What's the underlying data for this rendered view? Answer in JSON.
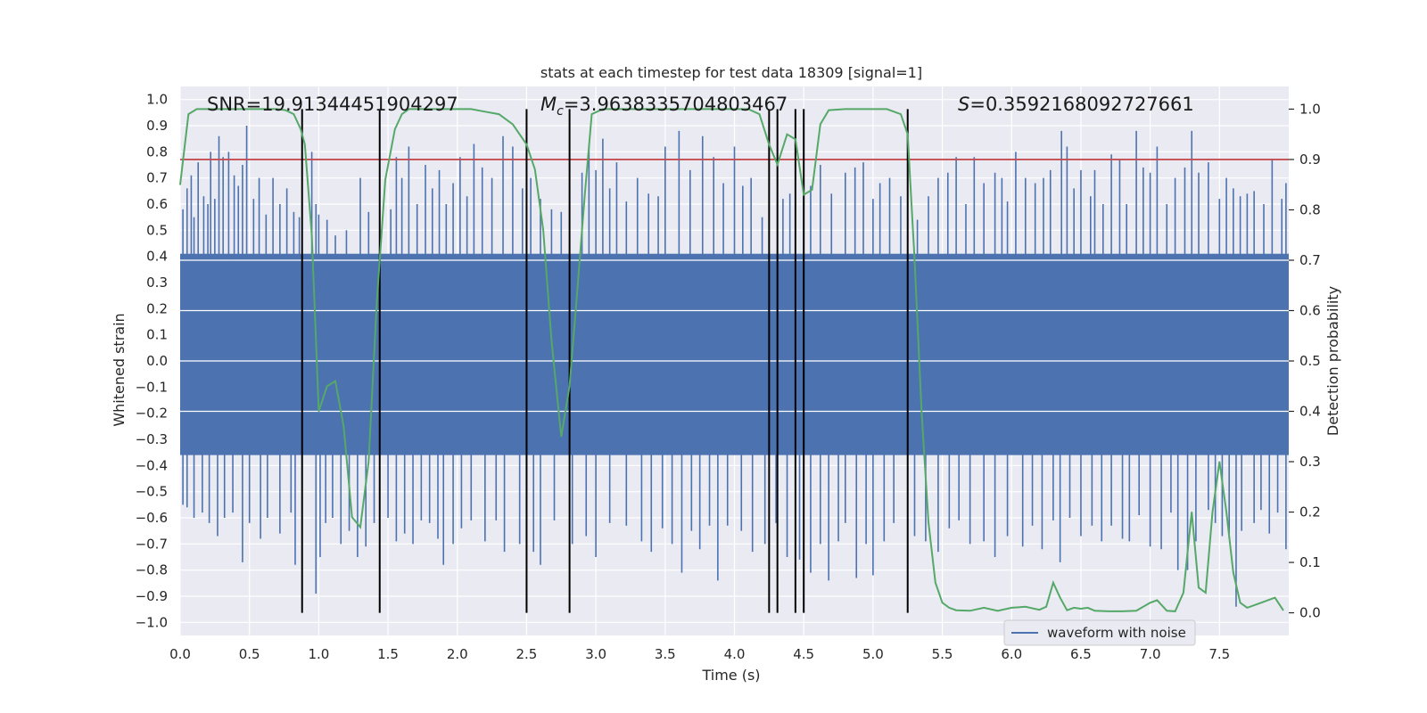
{
  "chart_data": {
    "type": "line",
    "title": "stats at each timestep for test data 18309 [signal=1]",
    "xlabel": "Time (s)",
    "ylabel": "Whitened strain",
    "ylabel_right": "Detection probability",
    "xlim": [
      0.0,
      8.0
    ],
    "ylim": [
      -1.05,
      1.05
    ],
    "ylim_right": [
      -0.045,
      1.045
    ],
    "x_ticks": [
      0.0,
      0.5,
      1.0,
      1.5,
      2.0,
      2.5,
      3.0,
      3.5,
      4.0,
      4.5,
      5.0,
      5.5,
      6.0,
      6.5,
      7.0,
      7.5
    ],
    "x_tick_labels": [
      "0.0",
      "0.5",
      "1.0",
      "1.5",
      "2.0",
      "2.5",
      "3.0",
      "3.5",
      "4.0",
      "4.5",
      "5.0",
      "5.5",
      "6.0",
      "6.5",
      "7.0",
      "7.5"
    ],
    "y_ticks": [
      1.0,
      0.9,
      0.8,
      0.7,
      0.6,
      0.5,
      0.4,
      0.3,
      0.2,
      0.1,
      0.0,
      -0.1,
      -0.2,
      -0.3,
      -0.4,
      -0.5,
      -0.6,
      -0.7,
      -0.8,
      -0.9,
      -1.0
    ],
    "y_tick_labels": [
      "1.0",
      "0.9",
      "0.8",
      "0.7",
      "0.6",
      "0.5",
      "0.4",
      "0.3",
      "0.2",
      "0.1",
      "0.0",
      "−0.1",
      "−0.2",
      "−0.3",
      "−0.4",
      "−0.5",
      "−0.6",
      "−0.7",
      "−0.8",
      "−0.9",
      "−1.0"
    ],
    "y_right_ticks": [
      1.0,
      0.9,
      0.8,
      0.7,
      0.6,
      0.5,
      0.4,
      0.3,
      0.2,
      0.1,
      0.0
    ],
    "y_right_tick_labels": [
      "1.0",
      "0.9",
      "0.8",
      "0.7",
      "0.6",
      "0.5",
      "0.4",
      "0.3",
      "0.2",
      "0.1",
      "0.0"
    ],
    "grid": true,
    "legend": {
      "placement": "lower-right",
      "entries": [
        "waveform with noise"
      ]
    },
    "annotations": {
      "snr": "SNR=19.91344451904297",
      "mc_symbol": "M",
      "mc_subscript": "c",
      "mc_value": "=3.9638335704803467",
      "s_symbol": "S",
      "s_value": "=0.3592168092727661"
    },
    "threshold": {
      "value": 0.9,
      "axis": "right",
      "color": "#c44e52"
    },
    "vertical_lines": [
      0.88,
      1.44,
      2.5,
      2.81,
      4.25,
      4.31,
      4.44,
      4.5,
      5.25
    ],
    "waveform": {
      "name": "waveform with noise",
      "color": "#4c72b0",
      "dense_band": [
        -0.36,
        0.41
      ],
      "positive_peaks": [
        [
          0.02,
          0.58
        ],
        [
          0.05,
          0.66
        ],
        [
          0.08,
          0.71
        ],
        [
          0.1,
          0.55
        ],
        [
          0.13,
          0.76
        ],
        [
          0.17,
          0.63
        ],
        [
          0.2,
          0.6
        ],
        [
          0.22,
          0.8
        ],
        [
          0.25,
          0.62
        ],
        [
          0.28,
          0.86
        ],
        [
          0.31,
          0.78
        ],
        [
          0.35,
          0.8
        ],
        [
          0.39,
          0.71
        ],
        [
          0.42,
          0.67
        ],
        [
          0.45,
          0.75
        ],
        [
          0.48,
          0.9
        ],
        [
          0.53,
          0.62
        ],
        [
          0.57,
          0.7
        ],
        [
          0.62,
          0.56
        ],
        [
          0.67,
          0.7
        ],
        [
          0.72,
          0.6
        ],
        [
          0.77,
          0.66
        ],
        [
          0.82,
          0.57
        ],
        [
          0.86,
          0.55
        ],
        [
          0.95,
          0.8
        ],
        [
          0.98,
          0.6
        ],
        [
          1.0,
          0.56
        ],
        [
          1.06,
          0.54
        ],
        [
          1.12,
          0.48
        ],
        [
          1.2,
          0.5
        ],
        [
          1.3,
          0.7
        ],
        [
          1.36,
          0.57
        ],
        [
          1.52,
          0.58
        ],
        [
          1.56,
          0.78
        ],
        [
          1.6,
          0.7
        ],
        [
          1.65,
          0.82
        ],
        [
          1.71,
          0.6
        ],
        [
          1.77,
          0.75
        ],
        [
          1.82,
          0.66
        ],
        [
          1.87,
          0.73
        ],
        [
          1.92,
          0.6
        ],
        [
          1.97,
          0.68
        ],
        [
          2.02,
          0.78
        ],
        [
          2.07,
          0.63
        ],
        [
          2.12,
          0.83
        ],
        [
          2.18,
          0.74
        ],
        [
          2.25,
          0.7
        ],
        [
          2.33,
          0.86
        ],
        [
          2.4,
          0.82
        ],
        [
          2.47,
          0.66
        ],
        [
          2.53,
          0.7
        ],
        [
          2.6,
          0.62
        ],
        [
          2.68,
          0.58
        ],
        [
          2.75,
          0.57
        ],
        [
          2.9,
          0.72
        ],
        [
          2.95,
          0.83
        ],
        [
          3.0,
          0.73
        ],
        [
          3.05,
          0.85
        ],
        [
          3.1,
          0.66
        ],
        [
          3.15,
          0.76
        ],
        [
          3.22,
          0.61
        ],
        [
          3.3,
          0.7
        ],
        [
          3.38,
          0.64
        ],
        [
          3.45,
          0.63
        ],
        [
          3.5,
          0.82
        ],
        [
          3.6,
          0.88
        ],
        [
          3.68,
          0.73
        ],
        [
          3.77,
          0.86
        ],
        [
          3.85,
          0.78
        ],
        [
          3.92,
          0.68
        ],
        [
          4.0,
          0.82
        ],
        [
          4.06,
          0.67
        ],
        [
          4.12,
          0.7
        ],
        [
          4.2,
          0.55
        ],
        [
          4.35,
          0.62
        ],
        [
          4.4,
          0.64
        ],
        [
          4.55,
          0.67
        ],
        [
          4.62,
          0.75
        ],
        [
          4.7,
          0.64
        ],
        [
          4.8,
          0.72
        ],
        [
          4.87,
          0.74
        ],
        [
          4.93,
          0.76
        ],
        [
          5.0,
          0.62
        ],
        [
          5.05,
          0.68
        ],
        [
          5.12,
          0.7
        ],
        [
          5.2,
          0.63
        ],
        [
          5.32,
          0.54
        ],
        [
          5.4,
          0.63
        ],
        [
          5.47,
          0.7
        ],
        [
          5.54,
          0.72
        ],
        [
          5.6,
          0.78
        ],
        [
          5.67,
          0.6
        ],
        [
          5.73,
          0.78
        ],
        [
          5.8,
          0.68
        ],
        [
          5.88,
          0.72
        ],
        [
          5.93,
          0.7
        ],
        [
          5.97,
          0.61
        ],
        [
          6.03,
          0.8
        ],
        [
          6.1,
          0.7
        ],
        [
          6.17,
          0.68
        ],
        [
          6.23,
          0.7
        ],
        [
          6.28,
          0.73
        ],
        [
          6.36,
          0.88
        ],
        [
          6.4,
          0.82
        ],
        [
          6.45,
          0.66
        ],
        [
          6.5,
          0.73
        ],
        [
          6.57,
          0.63
        ],
        [
          6.6,
          0.73
        ],
        [
          6.66,
          0.6
        ],
        [
          6.72,
          0.79
        ],
        [
          6.78,
          0.77
        ],
        [
          6.83,
          0.6
        ],
        [
          6.9,
          0.88
        ],
        [
          6.95,
          0.74
        ],
        [
          7.0,
          0.72
        ],
        [
          7.05,
          0.82
        ],
        [
          7.12,
          0.6
        ],
        [
          7.18,
          0.7
        ],
        [
          7.25,
          0.74
        ],
        [
          7.3,
          0.88
        ],
        [
          7.35,
          0.72
        ],
        [
          7.42,
          0.76
        ],
        [
          7.5,
          0.62
        ],
        [
          7.55,
          0.7
        ],
        [
          7.6,
          0.66
        ],
        [
          7.65,
          0.63
        ],
        [
          7.7,
          0.64
        ],
        [
          7.75,
          0.65
        ],
        [
          7.82,
          0.6
        ],
        [
          7.88,
          0.77
        ],
        [
          7.95,
          0.62
        ],
        [
          7.98,
          0.68
        ]
      ],
      "negative_peaks": [
        [
          0.02,
          -0.55
        ],
        [
          0.05,
          -0.56
        ],
        [
          0.1,
          -0.6
        ],
        [
          0.16,
          -0.58
        ],
        [
          0.21,
          -0.62
        ],
        [
          0.27,
          -0.67
        ],
        [
          0.32,
          -0.6
        ],
        [
          0.38,
          -0.58
        ],
        [
          0.45,
          -0.77
        ],
        [
          0.5,
          -0.62
        ],
        [
          0.58,
          -0.68
        ],
        [
          0.63,
          -0.6
        ],
        [
          0.72,
          -0.66
        ],
        [
          0.8,
          -0.58
        ],
        [
          0.83,
          -0.78
        ],
        [
          0.98,
          -0.89
        ],
        [
          1.01,
          -0.75
        ],
        [
          1.05,
          -0.62
        ],
        [
          1.1,
          -0.6
        ],
        [
          1.16,
          -0.7
        ],
        [
          1.22,
          -0.65
        ],
        [
          1.28,
          -0.75
        ],
        [
          1.34,
          -0.71
        ],
        [
          1.4,
          -0.62
        ],
        [
          1.5,
          -0.6
        ],
        [
          1.56,
          -0.69
        ],
        [
          1.62,
          -0.66
        ],
        [
          1.68,
          -0.7
        ],
        [
          1.74,
          -0.61
        ],
        [
          1.8,
          -0.62
        ],
        [
          1.86,
          -0.68
        ],
        [
          1.9,
          -0.78
        ],
        [
          1.97,
          -0.7
        ],
        [
          2.03,
          -0.64
        ],
        [
          2.1,
          -0.61
        ],
        [
          2.2,
          -0.69
        ],
        [
          2.28,
          -0.61
        ],
        [
          2.34,
          -0.73
        ],
        [
          2.45,
          -0.7
        ],
        [
          2.55,
          -0.73
        ],
        [
          2.6,
          -0.78
        ],
        [
          2.7,
          -0.61
        ],
        [
          2.83,
          -0.7
        ],
        [
          2.93,
          -0.67
        ],
        [
          3.0,
          -0.75
        ],
        [
          3.1,
          -0.62
        ],
        [
          3.22,
          -0.63
        ],
        [
          3.33,
          -0.69
        ],
        [
          3.4,
          -0.73
        ],
        [
          3.48,
          -0.64
        ],
        [
          3.55,
          -0.7
        ],
        [
          3.62,
          -0.81
        ],
        [
          3.69,
          -0.65
        ],
        [
          3.75,
          -0.72
        ],
        [
          3.82,
          -0.63
        ],
        [
          3.88,
          -0.84
        ],
        [
          3.95,
          -0.63
        ],
        [
          4.05,
          -0.65
        ],
        [
          4.13,
          -0.73
        ],
        [
          4.22,
          -0.7
        ],
        [
          4.3,
          -0.62
        ],
        [
          4.38,
          -0.75
        ],
        [
          4.47,
          -0.76
        ],
        [
          4.55,
          -0.81
        ],
        [
          4.62,
          -0.7
        ],
        [
          4.68,
          -0.84
        ],
        [
          4.75,
          -0.69
        ],
        [
          4.8,
          -0.62
        ],
        [
          4.88,
          -0.83
        ],
        [
          4.95,
          -0.7
        ],
        [
          5.0,
          -0.82
        ],
        [
          5.08,
          -0.69
        ],
        [
          5.15,
          -0.62
        ],
        [
          5.3,
          -0.67
        ],
        [
          5.38,
          -0.69
        ],
        [
          5.47,
          -0.73
        ],
        [
          5.55,
          -0.64
        ],
        [
          5.62,
          -0.61
        ],
        [
          5.7,
          -0.7
        ],
        [
          5.8,
          -0.69
        ],
        [
          5.88,
          -0.75
        ],
        [
          5.97,
          -0.67
        ],
        [
          6.08,
          -0.71
        ],
        [
          6.15,
          -0.63
        ],
        [
          6.22,
          -0.72
        ],
        [
          6.3,
          -0.61
        ],
        [
          6.35,
          -0.77
        ],
        [
          6.42,
          -0.6
        ],
        [
          6.5,
          -0.67
        ],
        [
          6.58,
          -0.63
        ],
        [
          6.65,
          -0.69
        ],
        [
          6.72,
          -0.63
        ],
        [
          6.8,
          -0.68
        ],
        [
          6.85,
          -0.69
        ],
        [
          6.92,
          -0.59
        ],
        [
          7.0,
          -0.71
        ],
        [
          7.08,
          -0.72
        ],
        [
          7.15,
          -0.58
        ],
        [
          7.2,
          -0.8
        ],
        [
          7.27,
          -0.8
        ],
        [
          7.33,
          -0.69
        ],
        [
          7.42,
          -0.57
        ],
        [
          7.47,
          -0.62
        ],
        [
          7.52,
          -0.67
        ],
        [
          7.57,
          -0.68
        ],
        [
          7.62,
          -0.94
        ],
        [
          7.66,
          -0.65
        ],
        [
          7.75,
          -0.62
        ],
        [
          7.8,
          -0.57
        ],
        [
          7.86,
          -0.66
        ],
        [
          7.92,
          -0.58
        ],
        [
          7.98,
          -0.72
        ]
      ]
    },
    "detection_probability": {
      "color": "#55a868",
      "axis": "right",
      "x": [
        0.0,
        0.06,
        0.12,
        0.2,
        0.3,
        0.4,
        0.5,
        0.6,
        0.7,
        0.76,
        0.82,
        0.87,
        0.9,
        0.95,
        1.0,
        1.06,
        1.12,
        1.18,
        1.24,
        1.3,
        1.36,
        1.42,
        1.48,
        1.55,
        1.6,
        1.65,
        1.75,
        1.85,
        2.0,
        2.1,
        2.2,
        2.3,
        2.4,
        2.5,
        2.56,
        2.62,
        2.68,
        2.75,
        2.81,
        2.86,
        2.92,
        2.97,
        3.05,
        3.15,
        3.25,
        3.35,
        3.5,
        3.7,
        3.9,
        4.1,
        4.18,
        4.25,
        4.31,
        4.38,
        4.44,
        4.5,
        4.56,
        4.62,
        4.68,
        4.8,
        4.95,
        5.1,
        5.2,
        5.25,
        5.3,
        5.35,
        5.4,
        5.45,
        5.5,
        5.55,
        5.6,
        5.7,
        5.8,
        5.9,
        6.0,
        6.1,
        6.2,
        6.25,
        6.3,
        6.35,
        6.4,
        6.45,
        6.5,
        6.55,
        6.6,
        6.7,
        6.8,
        6.9,
        7.0,
        7.05,
        7.12,
        7.18,
        7.24,
        7.3,
        7.35,
        7.4,
        7.45,
        7.5,
        7.55,
        7.6,
        7.65,
        7.7,
        7.8,
        7.9,
        7.96
      ],
      "y": [
        0.85,
        0.99,
        1.0,
        1.0,
        1.0,
        1.0,
        1.0,
        1.0,
        1.0,
        0.998,
        0.99,
        0.96,
        0.93,
        0.75,
        0.4,
        0.45,
        0.46,
        0.37,
        0.19,
        0.17,
        0.3,
        0.62,
        0.86,
        0.96,
        0.99,
        1.0,
        1.0,
        1.0,
        1.0,
        1.0,
        0.995,
        0.99,
        0.97,
        0.93,
        0.88,
        0.76,
        0.54,
        0.35,
        0.45,
        0.62,
        0.83,
        0.99,
        1.0,
        1.0,
        1.0,
        1.0,
        1.0,
        1.0,
        1.0,
        1.0,
        0.99,
        0.93,
        0.89,
        0.95,
        0.94,
        0.83,
        0.84,
        0.97,
        0.998,
        1.0,
        1.0,
        1.0,
        0.99,
        0.95,
        0.7,
        0.4,
        0.18,
        0.06,
        0.02,
        0.01,
        0.005,
        0.004,
        0.01,
        0.004,
        0.01,
        0.012,
        0.006,
        0.012,
        0.06,
        0.03,
        0.005,
        0.01,
        0.008,
        0.01,
        0.004,
        0.003,
        0.003,
        0.004,
        0.02,
        0.025,
        0.004,
        0.003,
        0.04,
        0.2,
        0.05,
        0.04,
        0.2,
        0.3,
        0.2,
        0.08,
        0.02,
        0.01,
        0.02,
        0.03,
        0.005
      ]
    }
  }
}
